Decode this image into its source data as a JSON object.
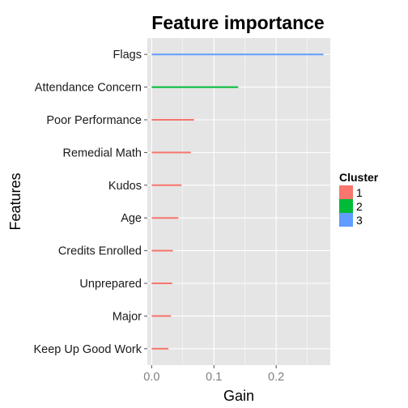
{
  "chart_data": {
    "type": "bar",
    "orientation": "horizontal",
    "title": "Feature importance",
    "xlabel": "Gain",
    "ylabel": "Features",
    "xlim": [
      -0.007,
      0.287
    ],
    "xticks": [
      {
        "value": 0.0,
        "label": "0.0"
      },
      {
        "value": 0.1,
        "label": "0.1"
      },
      {
        "value": 0.2,
        "label": "0.2"
      }
    ],
    "grid": true,
    "legend": {
      "title": "Cluster",
      "placement": "right",
      "entries": [
        {
          "label": "1",
          "color": "#F8766D"
        },
        {
          "label": "2",
          "color": "#00BA38"
        },
        {
          "label": "3",
          "color": "#619CFF"
        }
      ]
    },
    "categories": [
      "Flags",
      "Attendance Concern",
      "Poor Performance",
      "Remedial Math",
      "Kudos",
      "Age",
      "Credits Enrolled",
      "Unprepared",
      "Major",
      "Keep Up Good Work"
    ],
    "values": [
      0.276,
      0.139,
      0.068,
      0.063,
      0.048,
      0.043,
      0.034,
      0.033,
      0.031,
      0.027
    ],
    "cluster": [
      "3",
      "2",
      "1",
      "1",
      "1",
      "1",
      "1",
      "1",
      "1",
      "1"
    ]
  },
  "colors": {
    "panel_background": "#E5E5E5",
    "gridline": "#FFFFFF"
  }
}
